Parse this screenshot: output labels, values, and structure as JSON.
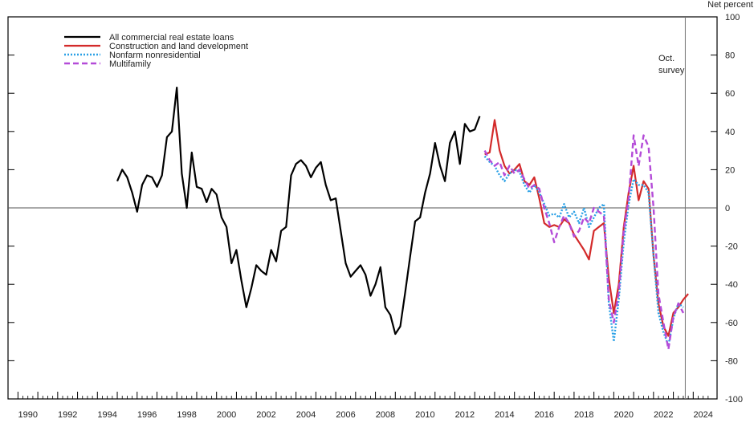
{
  "chart_data": {
    "type": "line",
    "unit_label": "Net percent",
    "annotation": [
      "Oct.",
      "survey"
    ],
    "annotation_x": 2023.6,
    "xlim": [
      1989.5,
      2025.2
    ],
    "ylim": [
      -100,
      100
    ],
    "x_ticks": [
      1990,
      1992,
      1994,
      1996,
      1998,
      2000,
      2002,
      2004,
      2006,
      2008,
      2010,
      2012,
      2014,
      2016,
      2018,
      2020,
      2022,
      2024
    ],
    "y_ticks": [
      -100,
      -80,
      -60,
      -40,
      -20,
      0,
      20,
      40,
      60,
      80,
      100
    ],
    "zero_line": true,
    "legend_position": "top-left",
    "series": [
      {
        "name": "All commercial real estate loans",
        "color": "#000000",
        "dash": "solid",
        "x": [
          1995.0,
          1995.25,
          1995.5,
          1995.75,
          1996.0,
          1996.25,
          1996.5,
          1996.75,
          1997.0,
          1997.25,
          1997.5,
          1997.75,
          1998.0,
          1998.25,
          1998.5,
          1998.75,
          1999.0,
          1999.25,
          1999.5,
          1999.75,
          2000.0,
          2000.25,
          2000.5,
          2000.75,
          2001.0,
          2001.25,
          2001.5,
          2001.75,
          2002.0,
          2002.25,
          2002.5,
          2002.75,
          2003.0,
          2003.25,
          2003.5,
          2003.75,
          2004.0,
          2004.25,
          2004.5,
          2004.75,
          2005.0,
          2005.25,
          2005.5,
          2005.75,
          2006.0,
          2006.25,
          2006.5,
          2006.75,
          2007.0,
          2007.25,
          2007.5,
          2007.75,
          2008.0,
          2008.25,
          2008.5,
          2008.75,
          2009.0,
          2009.25,
          2009.5,
          2009.75,
          2010.0,
          2010.25,
          2010.5,
          2010.75,
          2011.0,
          2011.25,
          2011.5,
          2011.75,
          2012.0,
          2012.25,
          2012.5,
          2012.75,
          2013.0,
          2013.25
        ],
        "values": [
          14,
          20,
          16,
          8,
          -2,
          12,
          17,
          16,
          11,
          17,
          37,
          40,
          63,
          18,
          0,
          29,
          11,
          10,
          3,
          10,
          7,
          -5,
          -10,
          -29,
          -22,
          -38,
          -52,
          -42,
          -30,
          -33,
          -35,
          -22,
          -28,
          -12,
          -10,
          17,
          23,
          25,
          22,
          16,
          21,
          24,
          12,
          4,
          5,
          -12,
          -29,
          -36,
          -33,
          -30,
          -35,
          -46,
          -40,
          -31,
          -52,
          -56,
          -66,
          -62,
          -44,
          -25,
          -7,
          -5,
          8,
          18,
          34,
          22,
          14,
          34,
          40,
          23,
          44,
          40,
          41,
          48
        ]
      },
      {
        "name": "Construction and land development",
        "color": "#d32a2a",
        "dash": "solid",
        "x": [
          2013.5,
          2013.75,
          2014.0,
          2014.25,
          2014.5,
          2014.75,
          2015.0,
          2015.25,
          2015.5,
          2015.75,
          2016.0,
          2016.25,
          2016.5,
          2016.75,
          2017.0,
          2017.25,
          2017.5,
          2017.75,
          2018.0,
          2018.25,
          2018.5,
          2018.75,
          2019.0,
          2019.25,
          2019.5,
          2019.75,
          2020.0,
          2020.25,
          2020.5,
          2020.75,
          2021.0,
          2021.25,
          2021.5,
          2021.75,
          2022.0,
          2022.25,
          2022.5,
          2022.75,
          2023.0,
          2023.25,
          2023.5,
          2023.75
        ],
        "values": [
          28,
          29,
          46,
          30,
          22,
          18,
          20,
          23,
          14,
          12,
          16,
          5,
          -8,
          -10,
          -9,
          -10,
          -6,
          -8,
          -14,
          -18,
          -22,
          -27,
          -12,
          -10,
          -8,
          -37,
          -55,
          -40,
          -10,
          8,
          22,
          4,
          14,
          10,
          -25,
          -50,
          -62,
          -67,
          -55,
          -52,
          -48,
          -45
        ]
      },
      {
        "name": "Nonfarm nonresidential",
        "color": "#2aa0e6",
        "dash": "dotted",
        "x": [
          2013.5,
          2013.75,
          2014.0,
          2014.25,
          2014.5,
          2014.75,
          2015.0,
          2015.25,
          2015.5,
          2015.75,
          2016.0,
          2016.25,
          2016.5,
          2016.75,
          2017.0,
          2017.25,
          2017.5,
          2017.75,
          2018.0,
          2018.25,
          2018.5,
          2018.75,
          2019.0,
          2019.25,
          2019.5,
          2019.75,
          2020.0,
          2020.25,
          2020.5,
          2020.75,
          2021.0,
          2021.25,
          2021.5,
          2021.75,
          2022.0,
          2022.25,
          2022.5,
          2022.75,
          2023.0,
          2023.25,
          2023.5
        ],
        "values": [
          27,
          24,
          22,
          17,
          14,
          18,
          20,
          19,
          12,
          8,
          12,
          8,
          2,
          -4,
          -3,
          -5,
          2,
          -5,
          -2,
          -8,
          0,
          -10,
          -5,
          0,
          2,
          -50,
          -70,
          -48,
          -18,
          2,
          15,
          12,
          12,
          8,
          -25,
          -55,
          -65,
          -72,
          -58,
          -50,
          -52
        ]
      },
      {
        "name": "Multifamily",
        "color": "#b44bd8",
        "dash": "dashed",
        "x": [
          2013.5,
          2013.75,
          2014.0,
          2014.25,
          2014.5,
          2014.75,
          2015.0,
          2015.25,
          2015.5,
          2015.75,
          2016.0,
          2016.25,
          2016.5,
          2016.75,
          2017.0,
          2017.25,
          2017.5,
          2017.75,
          2018.0,
          2018.25,
          2018.5,
          2018.75,
          2019.0,
          2019.25,
          2019.5,
          2019.75,
          2020.0,
          2020.25,
          2020.5,
          2020.75,
          2021.0,
          2021.25,
          2021.5,
          2021.75,
          2022.0,
          2022.25,
          2022.5,
          2022.75,
          2023.0,
          2023.25,
          2023.5
        ],
        "values": [
          30,
          25,
          22,
          24,
          17,
          22,
          18,
          20,
          15,
          10,
          12,
          10,
          0,
          -8,
          -18,
          -10,
          -4,
          -8,
          -15,
          -12,
          -5,
          -8,
          0,
          -2,
          -4,
          -48,
          -60,
          -44,
          -12,
          5,
          38,
          22,
          38,
          32,
          0,
          -45,
          -60,
          -74,
          -57,
          -50,
          -55
        ]
      }
    ]
  }
}
